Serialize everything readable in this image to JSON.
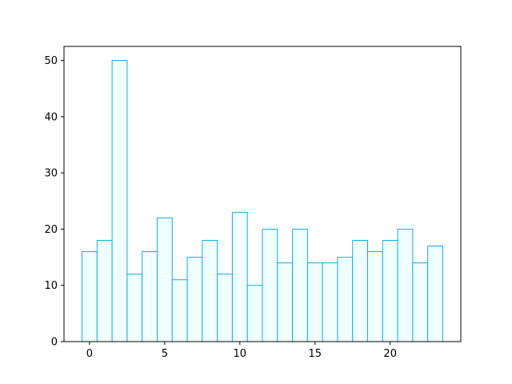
{
  "chart_data": {
    "type": "histogram",
    "bins": [
      -0.5,
      0.5,
      1.5,
      2.5,
      3.5,
      4.5,
      5.5,
      6.5,
      7.5,
      8.5,
      9.5,
      10.5,
      11.5,
      12.5,
      13.5,
      14.5,
      15.5,
      16.5,
      17.5,
      18.5,
      19.5,
      20.5,
      21.5,
      22.5,
      23.5
    ],
    "values": [
      16,
      18,
      50,
      12,
      16,
      22,
      11,
      15,
      18,
      12,
      23,
      10,
      20,
      14,
      20,
      14,
      14,
      15,
      18,
      16,
      18,
      20,
      14,
      17
    ],
    "color": "#f0ffff",
    "edgecolor": "#0fb0e0",
    "xlim": [
      -1.7,
      24.7
    ],
    "xticks": [
      0,
      5,
      10,
      15,
      20
    ],
    "ylim": [
      0,
      52.5
    ],
    "yticks": [
      0,
      10,
      20,
      30,
      40,
      50
    ],
    "grid": false
  }
}
